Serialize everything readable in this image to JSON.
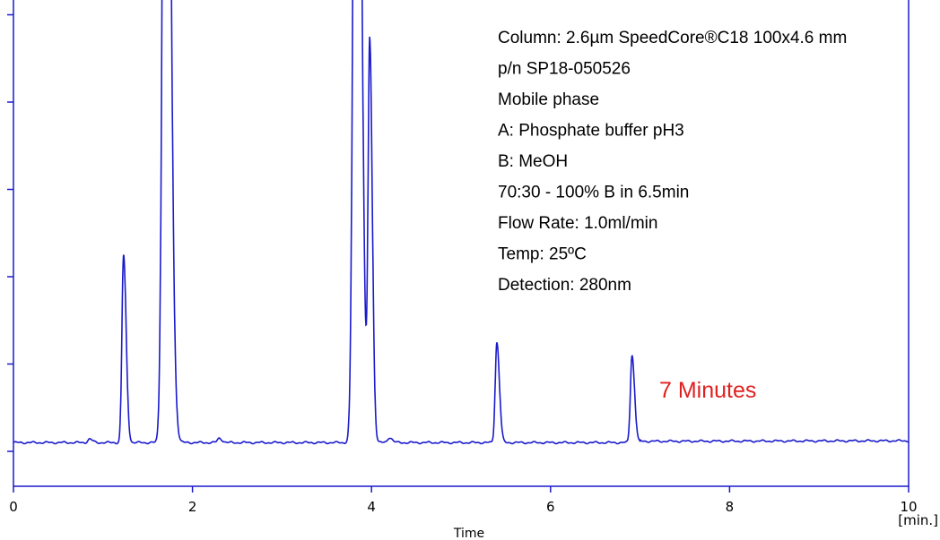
{
  "chart_data": {
    "type": "line",
    "xlabel": "Time",
    "x_unit": "[min.]",
    "xlim": [
      0,
      10
    ],
    "x_ticks": [
      0,
      2,
      4,
      6,
      8,
      10
    ],
    "ylim": [
      0,
      100
    ],
    "y_ticks": [
      0,
      10,
      20,
      30,
      40,
      50
    ],
    "grid": false,
    "line_color": "#1a1acc",
    "highlight_color": "#e02020",
    "baseline": 1.0,
    "peaks": [
      {
        "rt": 0.85,
        "height": 0.4,
        "width": 0.02
      },
      {
        "rt": 1.23,
        "height": 21.5,
        "width": 0.018
      },
      {
        "rt": 1.7,
        "height": 130,
        "width": 0.03
      },
      {
        "rt": 2.3,
        "height": 0.5,
        "width": 0.02
      },
      {
        "rt": 3.83,
        "height": 130,
        "width": 0.03
      },
      {
        "rt": 3.98,
        "height": 45.5,
        "width": 0.018
      },
      {
        "rt": 4.2,
        "height": 0.6,
        "width": 0.02
      },
      {
        "rt": 5.4,
        "height": 11.5,
        "width": 0.018
      },
      {
        "rt": 6.91,
        "height": 10.0,
        "width": 0.018
      }
    ],
    "annotations": {
      "conditions": [
        "Column: 2.6µm SpeedCore®C18 100x4.6 mm",
        "p/n SP18-050526",
        "Mobile phase",
        "A: Phosphate buffer pH3",
        "B: MeOH",
        "70:30 - 100% B in 6.5min",
        "Flow Rate: 1.0ml/min",
        "Temp: 25ºC",
        "Detection: 280nm"
      ],
      "run_time_label": "7 Minutes"
    }
  }
}
